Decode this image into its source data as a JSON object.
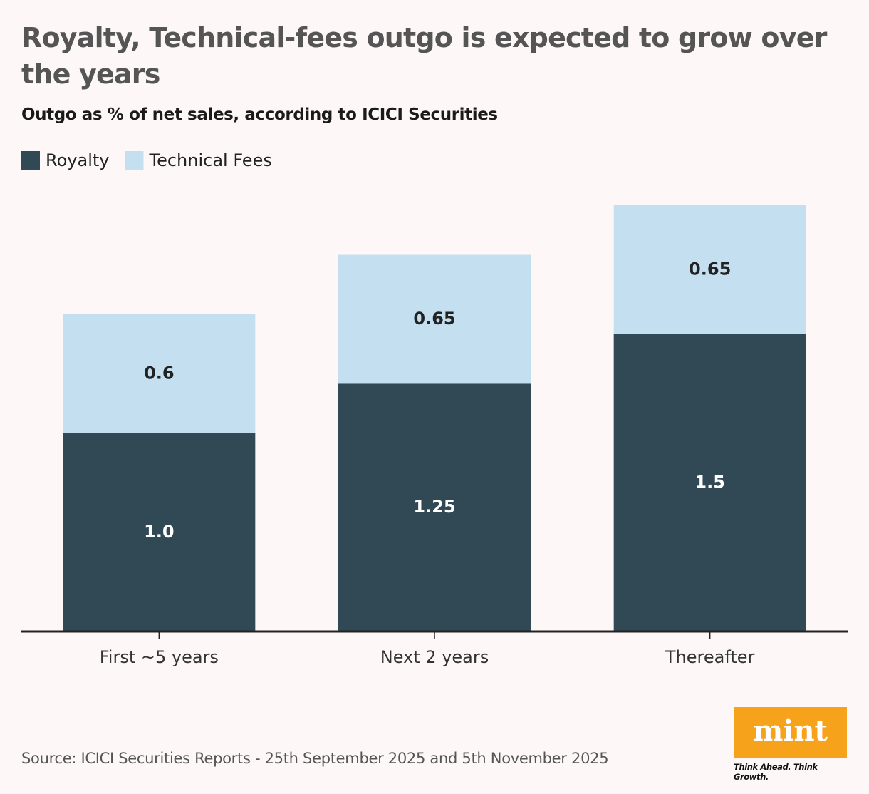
{
  "chart_data": {
    "type": "stacked_bar",
    "title": "Royalty, Technical-fees outgo is expected to grow over the years",
    "subtitle": "Outgo as % of net sales, according to ICICI Securities",
    "categories": [
      "First ~5 years",
      "Next 2 years",
      "Thereafter"
    ],
    "series": [
      {
        "name": "Royalty",
        "color": "#314955",
        "label_color": "#ffffff",
        "values": [
          1,
          1.25,
          1.5
        ],
        "value_labels": [
          "1.0",
          "1.25",
          "1.5"
        ]
      },
      {
        "name": "Technical Fees",
        "color": "#c3dff0",
        "label_color": "#222222",
        "values": [
          0.6,
          0.65,
          0.65
        ],
        "value_labels": [
          "0.6",
          "0.65",
          "0.65"
        ]
      }
    ],
    "source": "Source: ICICI Securities Reports - 25th September 2025 and 5th November 2025",
    "logo": "mint",
    "tagline": "Think Ahead. Think Growth."
  }
}
